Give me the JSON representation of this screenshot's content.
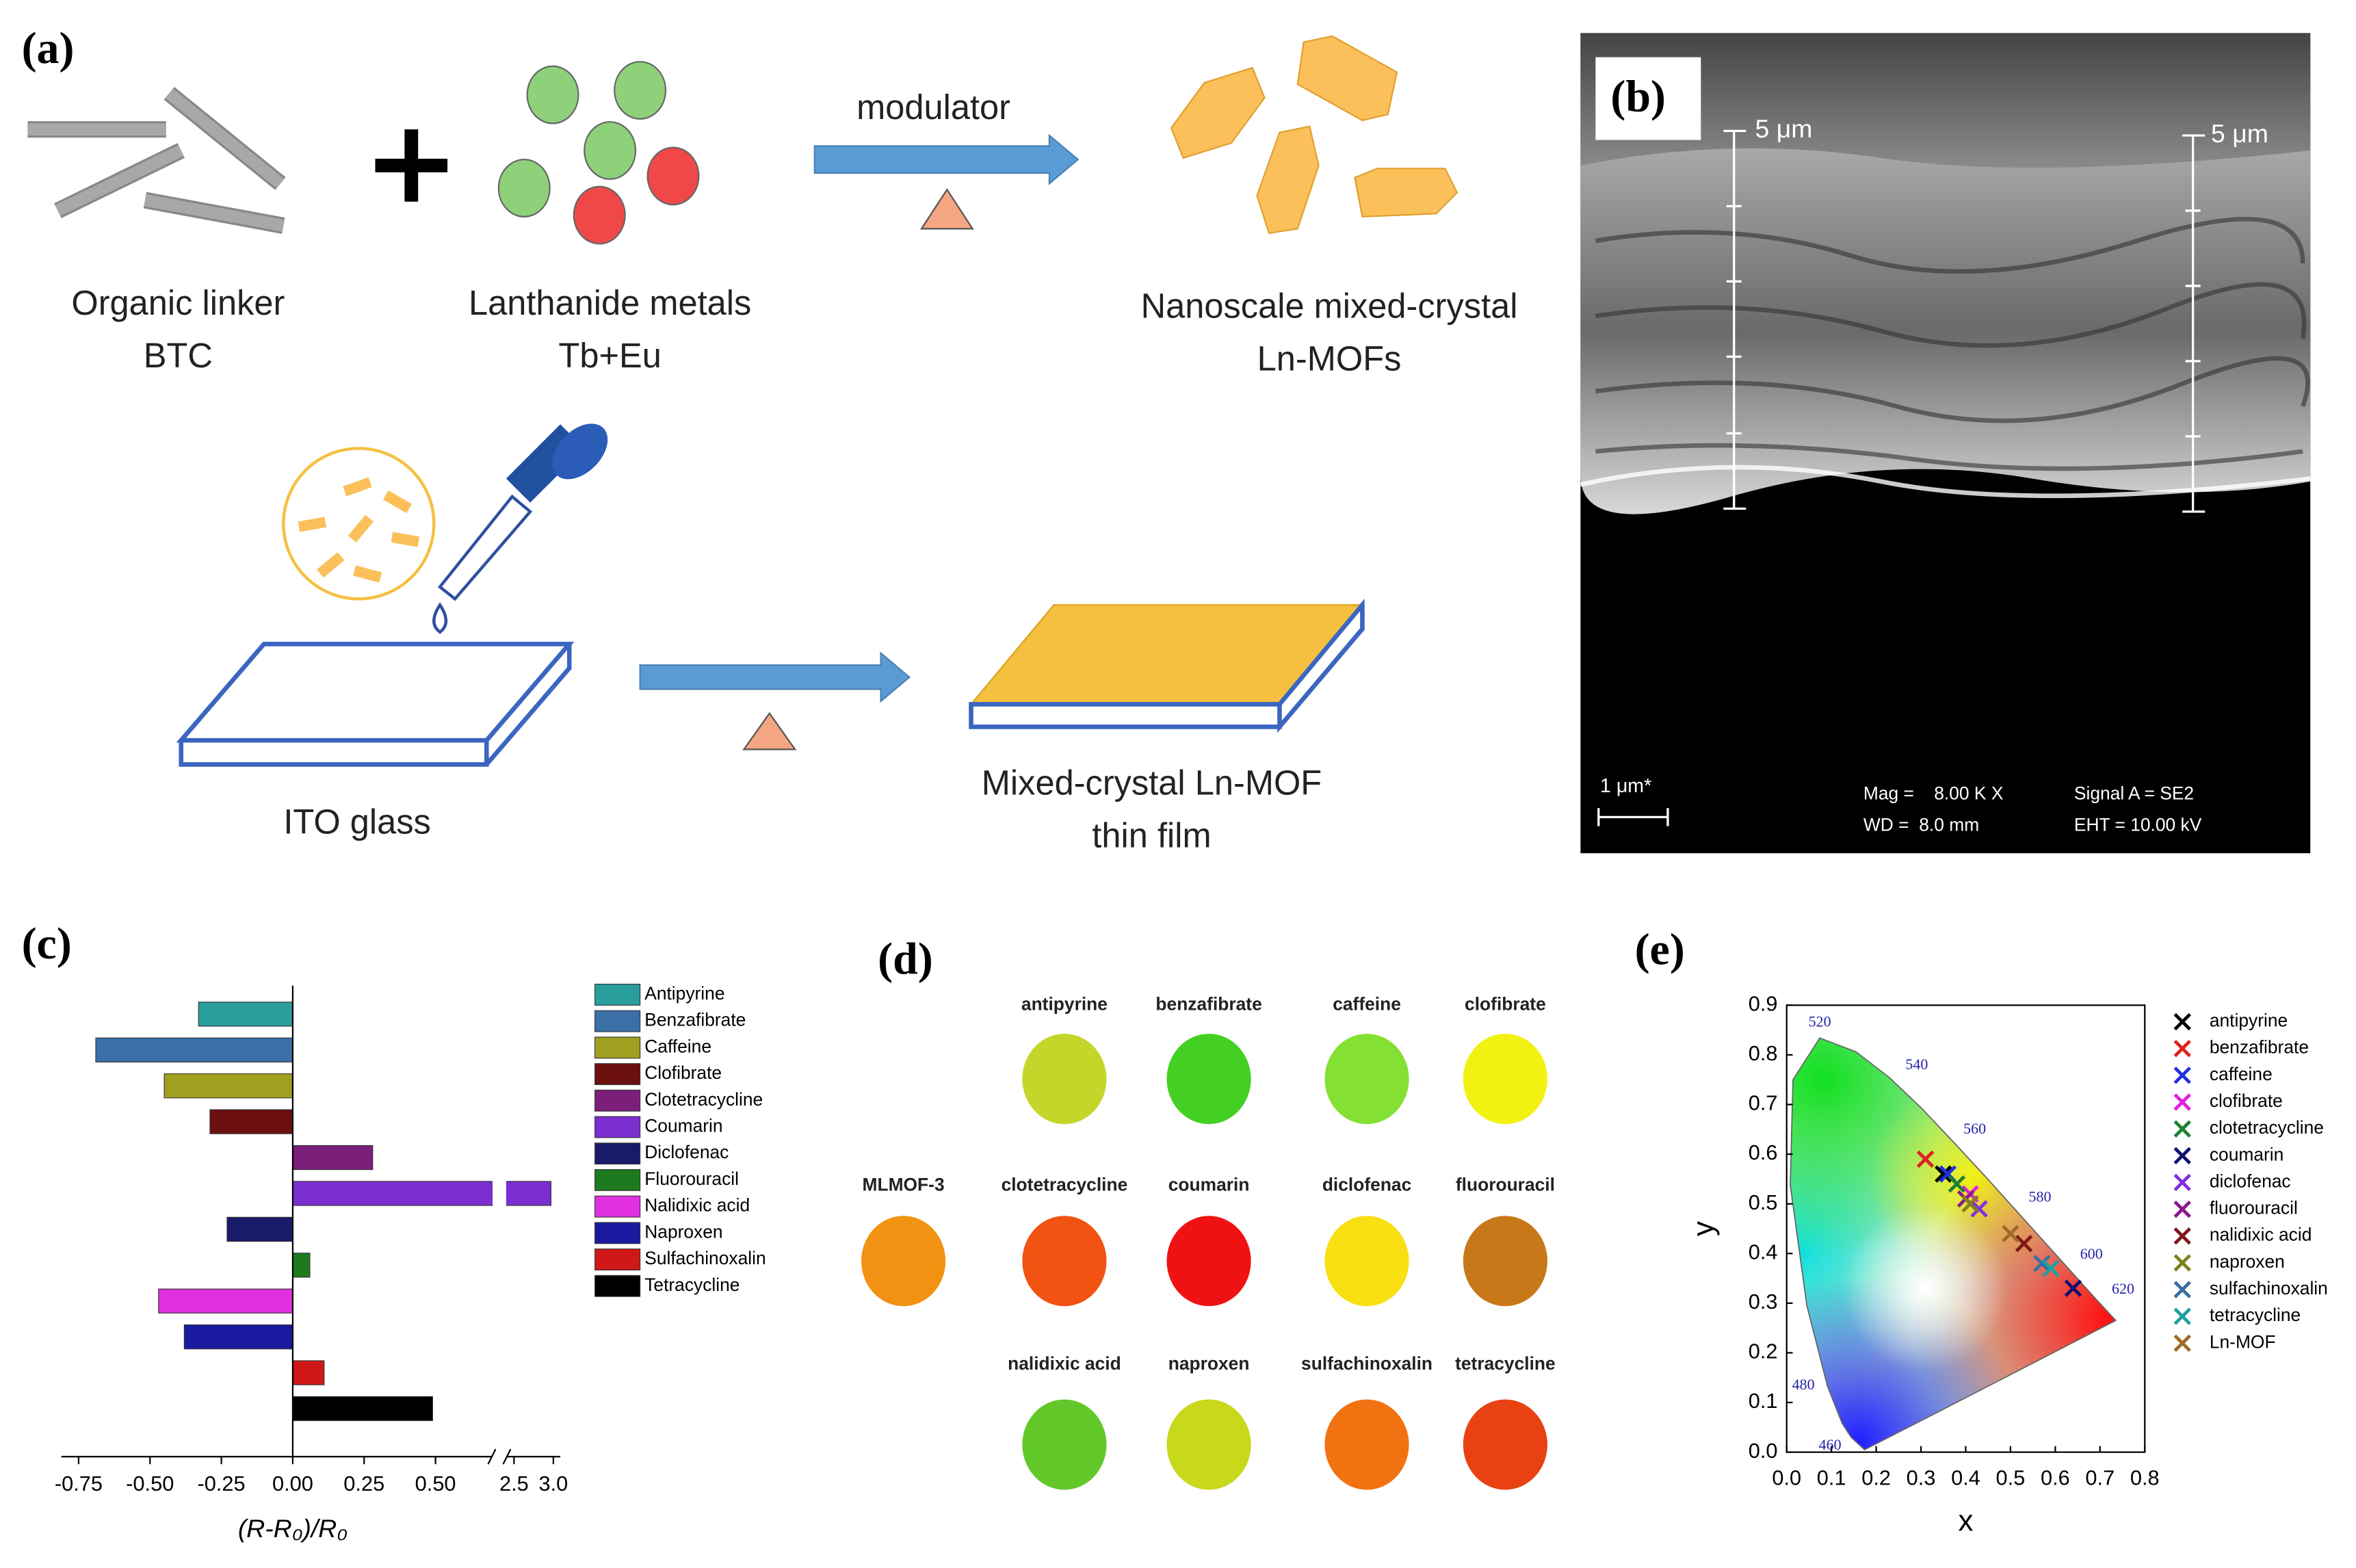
{
  "panel_a": {
    "label": "(a)",
    "linker": [
      "Organic linker",
      "BTC"
    ],
    "metals": [
      "Lanthanide metals",
      "Tb+Eu"
    ],
    "modulator": "modulator",
    "product": [
      "Nanoscale mixed-crystal",
      "Ln-MOFs"
    ],
    "substrate": "ITO glass",
    "film": [
      "Mixed-crystal Ln-MOF",
      "thin film"
    ]
  },
  "panel_b": {
    "label": "(b)",
    "scale_left": "5 μm",
    "scale_right": "5 μm",
    "scale_bar": "1 μm*",
    "info": [
      "Mag =    8.00 K X",
      "WD =  8.0 mm",
      "Signal A = SE2",
      "EHT = 10.00 kV"
    ]
  },
  "panel_d": {
    "label": "(d)",
    "samples": [
      {
        "name": "antipyrine",
        "color": "#c4d62a"
      },
      {
        "name": "benzafibrate",
        "color": "#44d022"
      },
      {
        "name": "caffeine",
        "color": "#84e032"
      },
      {
        "name": "clofibrate",
        "color": "#f2f212"
      },
      {
        "name": "MLMOF-3",
        "color": "#f29212"
      },
      {
        "name": "clotetracycline",
        "color": "#f25212"
      },
      {
        "name": "coumarin",
        "color": "#f01212"
      },
      {
        "name": "diclofenac",
        "color": "#f8e012"
      },
      {
        "name": "fluorouracil",
        "color": "#c87818"
      },
      {
        "name": "nalidixic acid",
        "color": "#62c82a"
      },
      {
        "name": "naproxen",
        "color": "#c8d81a"
      },
      {
        "name": "sulfachinoxalin",
        "color": "#f27212"
      },
      {
        "name": "tetracycline",
        "color": "#e84212"
      }
    ]
  },
  "chart_data": [
    {
      "type": "bar",
      "label": "(c)",
      "xlabel": "(R-R₀)/R₀",
      "categories": [
        "Antipyrine",
        "Benzafibrate",
        "Caffeine",
        "Clofibrate",
        "Clotetracycline",
        "Coumarin",
        "Diclofenac",
        "Fluorouracil",
        "Nalidixic acid",
        "Naproxen",
        "Sulfachinoxalin",
        "Tetracycline"
      ],
      "values": [
        -0.33,
        -0.69,
        -0.45,
        -0.29,
        0.28,
        2.97,
        -0.23,
        0.06,
        -0.47,
        -0.38,
        0.11,
        0.49
      ],
      "colors": [
        "#2a9d9d",
        "#3a6fa8",
        "#a0a020",
        "#6b0f0f",
        "#7b1f7b",
        "#7b2fd0",
        "#1a1a6a",
        "#1e7a1e",
        "#e030e0",
        "#1a1aa0",
        "#d01818",
        "#000000"
      ],
      "xlim": [
        -0.8,
        3.05
      ],
      "xbreak": [
        0.7,
        2.4
      ],
      "xticks": [
        -0.75,
        {
          "value": -0.5,
          "label": "-0.50"
        },
        -0.25,
        {
          "value": 0,
          "label": "0.00"
        },
        0.25,
        {
          "value": 0.5,
          "label": "0.50"
        },
        2.5,
        {
          "value": 3,
          "label": "3.0"
        }
      ]
    },
    {
      "type": "scatter",
      "label": "(e)",
      "xlabel": "x",
      "ylabel": "y",
      "xlim": [
        0,
        0.8
      ],
      "ylim": [
        0,
        0.9
      ],
      "xticks": [
        {
          "value": 0,
          "label": "0.0"
        },
        0.1,
        0.2,
        0.3,
        0.4,
        0.5,
        0.6,
        0.7,
        0.8
      ],
      "yticks": [
        {
          "value": 0,
          "label": "0.0"
        },
        0.1,
        0.2,
        0.3,
        0.4,
        0.5,
        0.6,
        0.7,
        0.8,
        0.9
      ],
      "annotations": [
        "460",
        "480",
        "520",
        "540",
        "560",
        "580",
        "600",
        "620"
      ],
      "series": [
        {
          "name": "antipyrine",
          "color": "#000000",
          "x": [
            0.35
          ],
          "values": [
            0.56
          ]
        },
        {
          "name": "benzafibrate",
          "color": "#e02020",
          "x": [
            0.31
          ],
          "values": [
            0.59
          ]
        },
        {
          "name": "caffeine",
          "color": "#2030e0",
          "x": [
            0.36
          ],
          "values": [
            0.56
          ]
        },
        {
          "name": "clofibrate",
          "color": "#e020e0",
          "x": [
            0.41
          ],
          "values": [
            0.52
          ]
        },
        {
          "name": "clotetracycline",
          "color": "#208030",
          "x": [
            0.38
          ],
          "values": [
            0.54
          ]
        },
        {
          "name": "coumarin",
          "color": "#101070",
          "x": [
            0.64
          ],
          "values": [
            0.33
          ]
        },
        {
          "name": "diclofenac",
          "color": "#8030e0",
          "x": [
            0.43
          ],
          "values": [
            0.49
          ]
        },
        {
          "name": "fluorouracil",
          "color": "#8a1a8a",
          "x": [
            0.4
          ],
          "values": [
            0.51
          ]
        },
        {
          "name": "nalidixic acid",
          "color": "#801818",
          "x": [
            0.53
          ],
          "values": [
            0.42
          ]
        },
        {
          "name": "naproxen",
          "color": "#808020",
          "x": [
            0.41
          ],
          "values": [
            0.5
          ]
        },
        {
          "name": "sulfachinoxalin",
          "color": "#3a6ea0",
          "x": [
            0.57
          ],
          "values": [
            0.38
          ]
        },
        {
          "name": "tetracycline",
          "color": "#20a0a0",
          "x": [
            0.59
          ],
          "values": [
            0.37
          ]
        },
        {
          "name": "Ln-MOF",
          "color": "#a06a2a",
          "x": [
            0.5
          ],
          "values": [
            0.44
          ]
        }
      ]
    }
  ]
}
